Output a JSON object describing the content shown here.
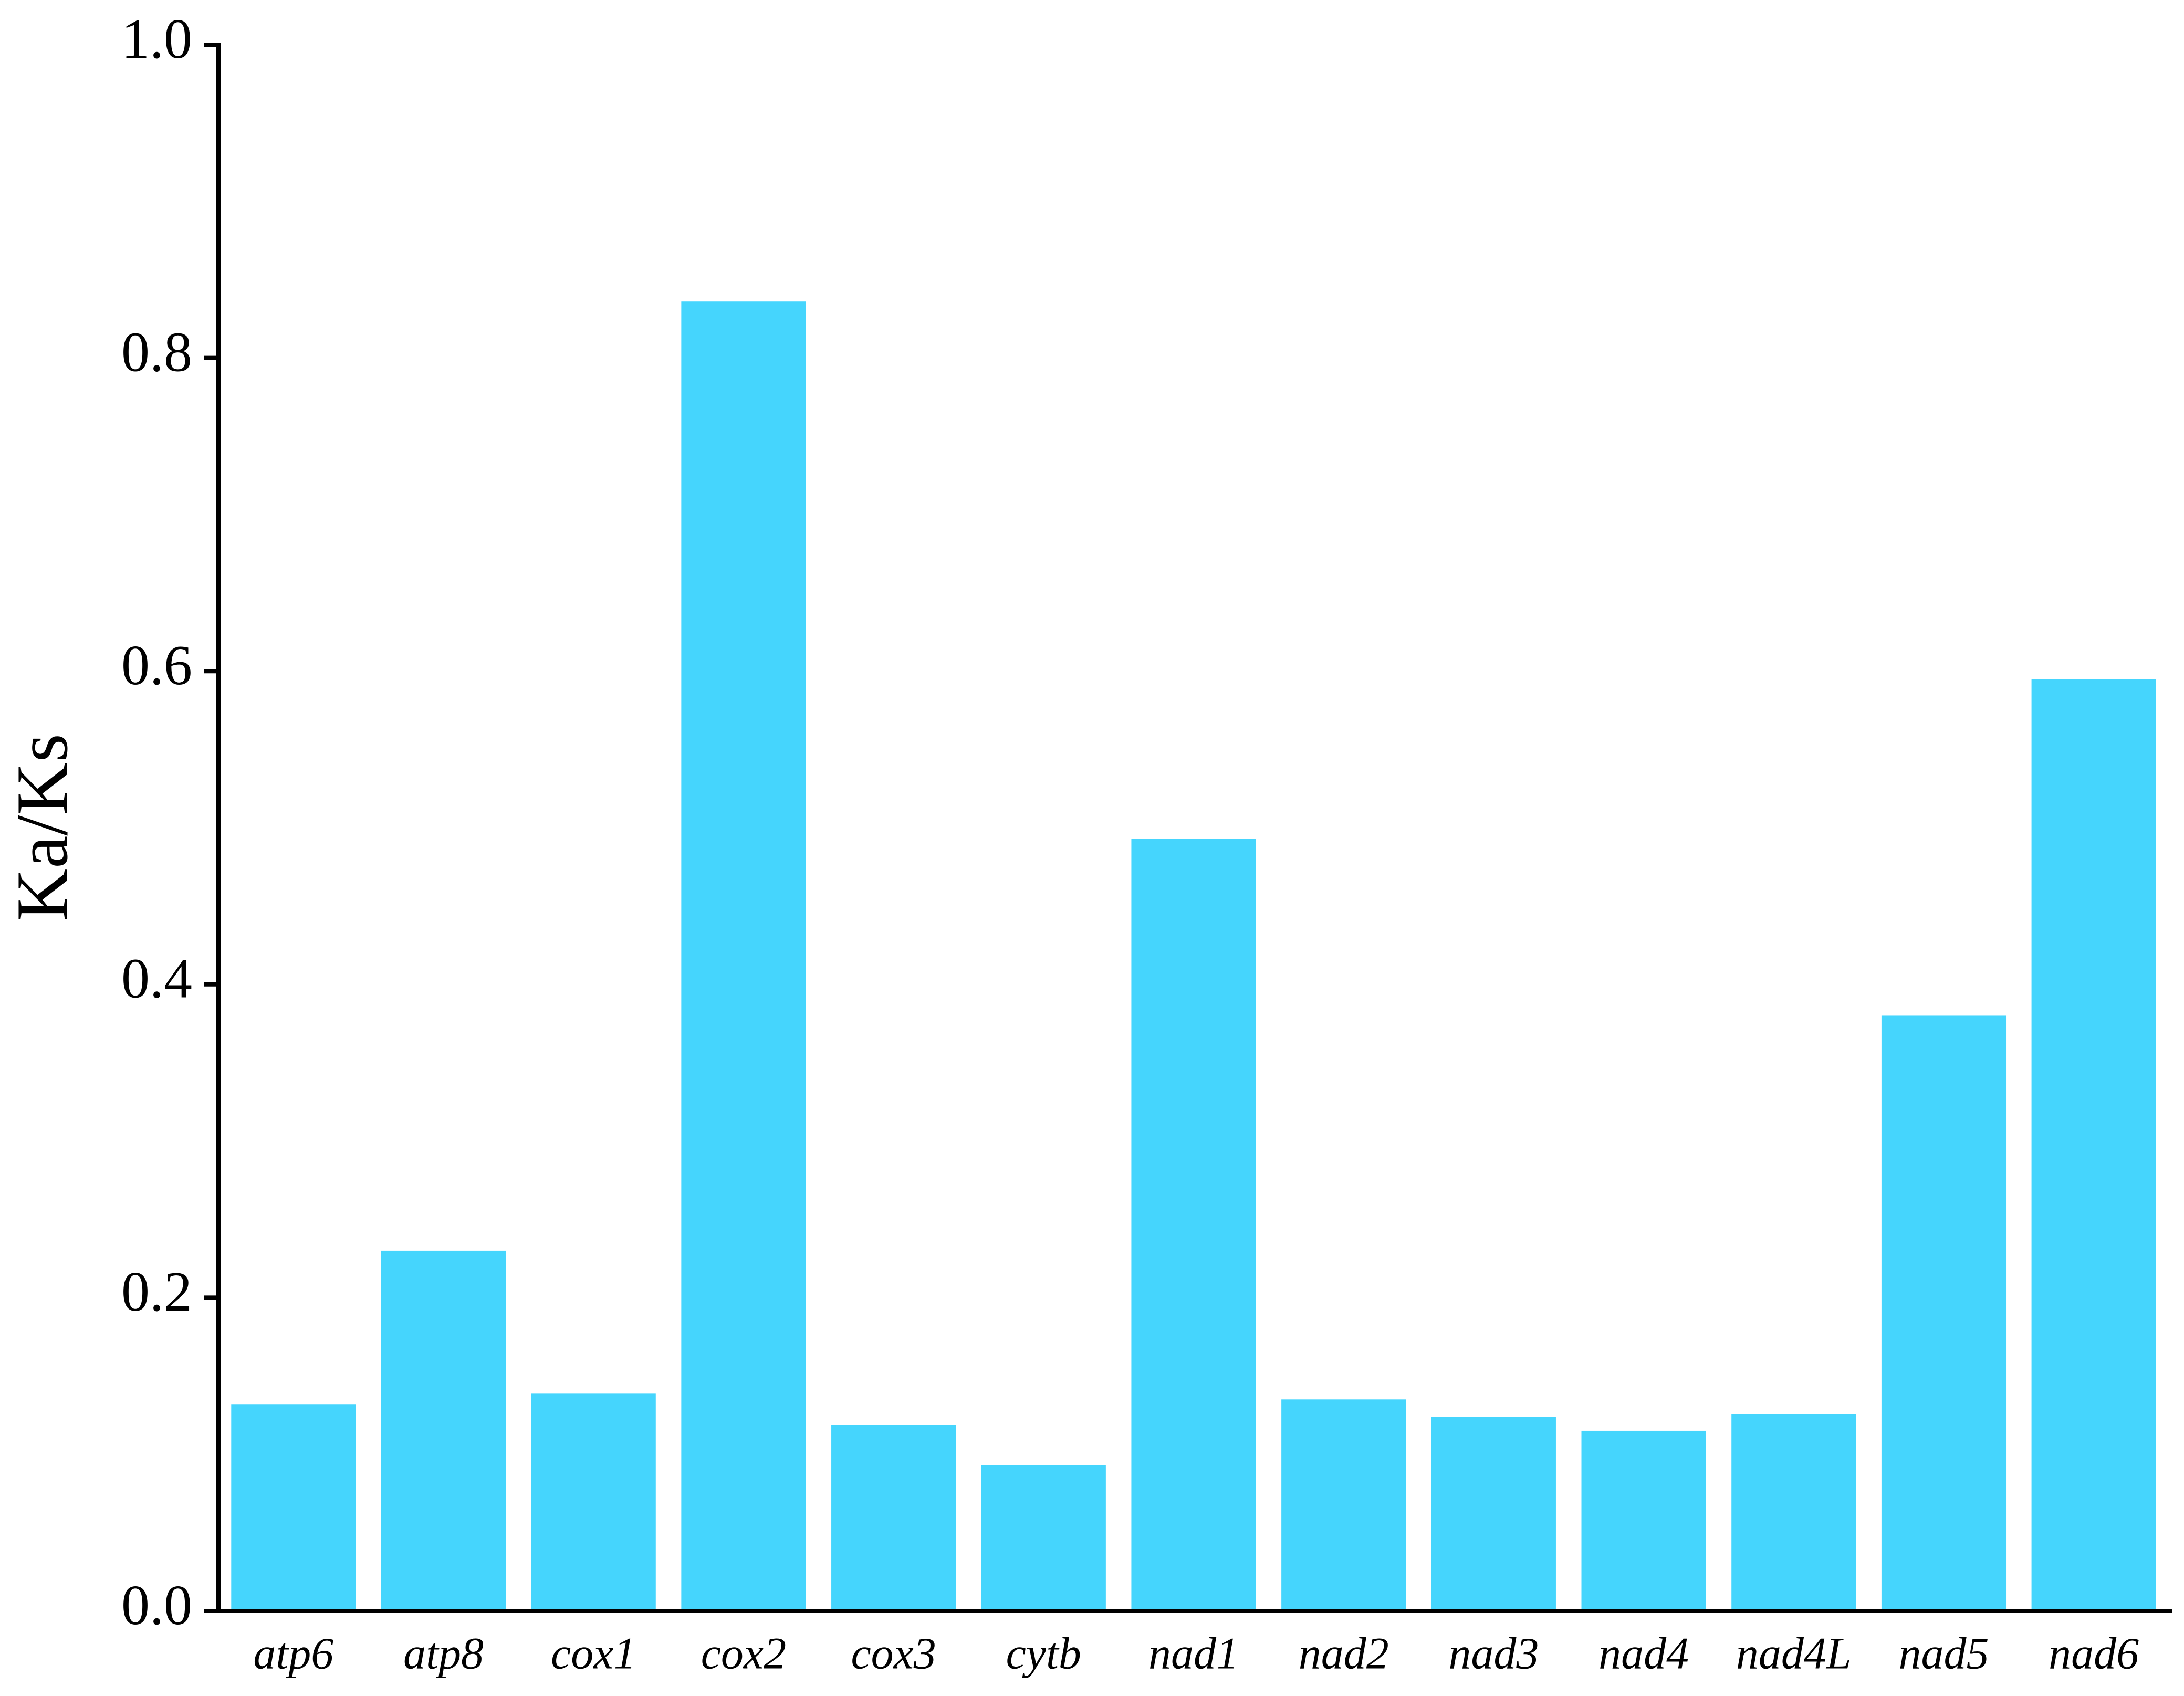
{
  "chart_data": {
    "type": "bar",
    "ylabel": "Ka/Ks",
    "categories": [
      "atp6",
      "atp8",
      "cox1",
      "cox2",
      "cox3",
      "cytb",
      "nad1",
      "nad2",
      "nad3",
      "nad4",
      "nad4L",
      "nad5",
      "nad6"
    ],
    "values": [
      0.132,
      0.23,
      0.139,
      0.836,
      0.119,
      0.093,
      0.493,
      0.135,
      0.124,
      0.115,
      0.126,
      0.38,
      0.595
    ],
    "color": "#45d5fd",
    "ylim": [
      0,
      1.0
    ],
    "yticks": [
      {
        "value": 0,
        "label": "0.0"
      },
      0.2,
      0.4,
      0.6,
      0.8,
      {
        "value": 1.0,
        "label": "1.0"
      }
    ],
    "grid": false
  }
}
